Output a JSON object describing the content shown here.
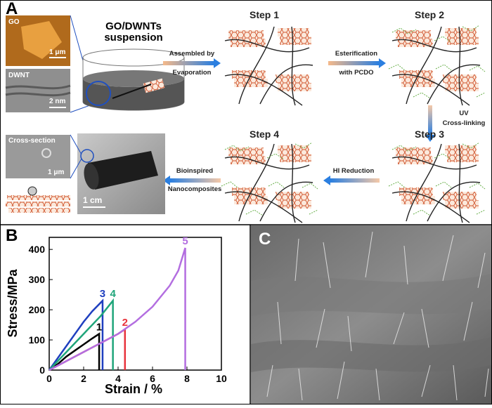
{
  "panels": {
    "a": {
      "letter": "A",
      "go_label": "GO",
      "go_scale": "1 μm",
      "dwnt_label": "DWNT",
      "dwnt_scale": "2 nm",
      "suspension": [
        "GO/DWNTs",
        "suspension"
      ],
      "steps": [
        "Step 1",
        "Step 2",
        "Step 3",
        "Step 4"
      ],
      "arrows": [
        [
          "Assembled by",
          "Evaporation"
        ],
        [
          "Esterification",
          "with PCDO"
        ],
        [
          "UV",
          "Cross-linking"
        ],
        [
          "HI Reduction"
        ],
        [
          "Bioinspired",
          "Nanocomposites"
        ]
      ],
      "cross_section": "Cross-section",
      "cross_scale": "1 μm",
      "photo_scale": "1 cm"
    },
    "b": {
      "letter": "B"
    },
    "c": {
      "letter": "C"
    }
  },
  "chart_data": {
    "type": "line",
    "x_label": "Strain / %",
    "y_label": "Stress/MPa",
    "xlim": [
      0,
      10
    ],
    "xticks": [
      0,
      2,
      4,
      6,
      8,
      10
    ],
    "ylim": [
      0,
      440
    ],
    "yticks": [
      0,
      100,
      200,
      300,
      400
    ],
    "series": [
      {
        "name": "1",
        "color": "#000000",
        "x": [
          0,
          0.5,
          1,
          1.5,
          2,
          2.5,
          2.9,
          2.9
        ],
        "values": [
          0,
          20,
          45,
          65,
          85,
          105,
          120,
          0
        ]
      },
      {
        "name": "2",
        "color": "#e8333c",
        "x": [
          0,
          1,
          2,
          3,
          4,
          4.4,
          4.4
        ],
        "values": [
          0,
          30,
          60,
          90,
          120,
          135,
          0
        ]
      },
      {
        "name": "3",
        "color": "#1f3fbf",
        "x": [
          0,
          0.5,
          1,
          1.5,
          2,
          2.5,
          3.1,
          3.1
        ],
        "values": [
          0,
          40,
          80,
          120,
          160,
          195,
          230,
          0
        ]
      },
      {
        "name": "4",
        "color": "#1fa57a",
        "x": [
          0,
          1,
          2,
          3,
          3.7,
          3.7
        ],
        "values": [
          0,
          60,
          120,
          180,
          230,
          0
        ]
      },
      {
        "name": "5",
        "color": "#b36ee0",
        "x": [
          0,
          1,
          2,
          3,
          4,
          5,
          6,
          7,
          7.5,
          7.9,
          7.9
        ],
        "values": [
          0,
          30,
          60,
          90,
          120,
          160,
          210,
          280,
          330,
          405,
          0
        ]
      }
    ]
  }
}
